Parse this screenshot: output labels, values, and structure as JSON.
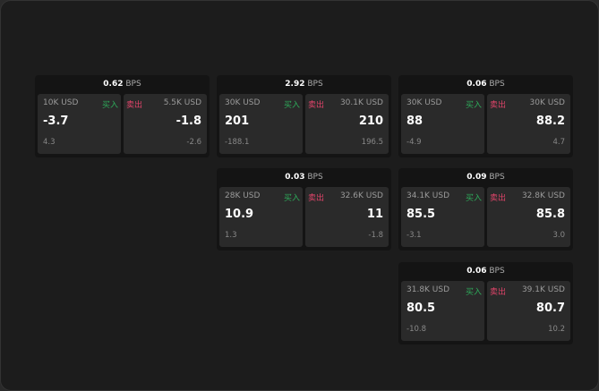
{
  "unit": "BPS",
  "buy_label": "买入",
  "sell_label": "卖出",
  "cards": [
    {
      "spread": "0.62",
      "buy": {
        "qty": "10K USD",
        "price": "-3.7",
        "change": "4.3"
      },
      "sell": {
        "qty": "5.5K USD",
        "price": "-1.8",
        "change": "-2.6"
      }
    },
    {
      "spread": "2.92",
      "buy": {
        "qty": "30K USD",
        "price": "201",
        "change": "-188.1"
      },
      "sell": {
        "qty": "30.1K USD",
        "price": "210",
        "change": "196.5"
      }
    },
    {
      "spread": "0.06",
      "buy": {
        "qty": "30K USD",
        "price": "88",
        "change": "-4.9"
      },
      "sell": {
        "qty": "30K USD",
        "price": "88.2",
        "change": "4.7"
      }
    },
    {
      "spread": "0.03",
      "buy": {
        "qty": "28K USD",
        "price": "10.9",
        "change": "1.3"
      },
      "sell": {
        "qty": "32.6K USD",
        "price": "11",
        "change": "-1.8"
      }
    },
    {
      "spread": "0.09",
      "buy": {
        "qty": "34.1K USD",
        "price": "85.5",
        "change": "-3.1"
      },
      "sell": {
        "qty": "32.8K USD",
        "price": "85.8",
        "change": "3.0"
      }
    },
    {
      "spread": "0.06",
      "buy": {
        "qty": "31.8K USD",
        "price": "80.5",
        "change": "-10.8"
      },
      "sell": {
        "qty": "39.1K USD",
        "price": "80.7",
        "change": "10.2"
      }
    }
  ],
  "colors": {
    "buy": "#2eaa5a",
    "sell": "#e0446a"
  }
}
